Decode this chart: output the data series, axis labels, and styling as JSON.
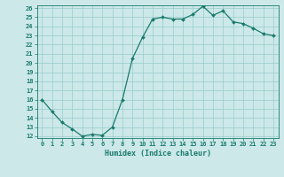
{
  "x": [
    0,
    1,
    2,
    3,
    4,
    5,
    6,
    7,
    8,
    9,
    10,
    11,
    12,
    13,
    14,
    15,
    16,
    17,
    18,
    19,
    20,
    21,
    22,
    23
  ],
  "y": [
    16.0,
    14.7,
    13.5,
    12.8,
    12.0,
    12.2,
    12.1,
    13.0,
    16.0,
    20.5,
    22.8,
    24.8,
    25.0,
    24.8,
    24.8,
    25.3,
    26.2,
    25.2,
    25.7,
    24.5,
    24.3,
    23.8,
    23.2,
    23.0
  ],
  "line_color": "#1a7a6e",
  "marker": "D",
  "markersize": 2.0,
  "linewidth": 0.9,
  "bg_color": "#cce8e8",
  "grid_color": "#99cccc",
  "xlabel": "Humidex (Indice chaleur)",
  "xlabel_fontsize": 6.0,
  "tick_fontsize": 5.0,
  "ylim": [
    12,
    26
  ],
  "xlim": [
    -0.5,
    23.5
  ],
  "yticks": [
    12,
    13,
    14,
    15,
    16,
    17,
    18,
    19,
    20,
    21,
    22,
    23,
    24,
    25,
    26
  ],
  "xticks": [
    0,
    1,
    2,
    3,
    4,
    5,
    6,
    7,
    8,
    9,
    10,
    11,
    12,
    13,
    14,
    15,
    16,
    17,
    18,
    19,
    20,
    21,
    22,
    23
  ],
  "xtick_labels": [
    "0",
    "1",
    "2",
    "3",
    "4",
    "5",
    "6",
    "7",
    "8",
    "9",
    "10",
    "11",
    "12",
    "13",
    "14",
    "15",
    "16",
    "17",
    "18",
    "19",
    "20",
    "21",
    "22",
    "23"
  ]
}
